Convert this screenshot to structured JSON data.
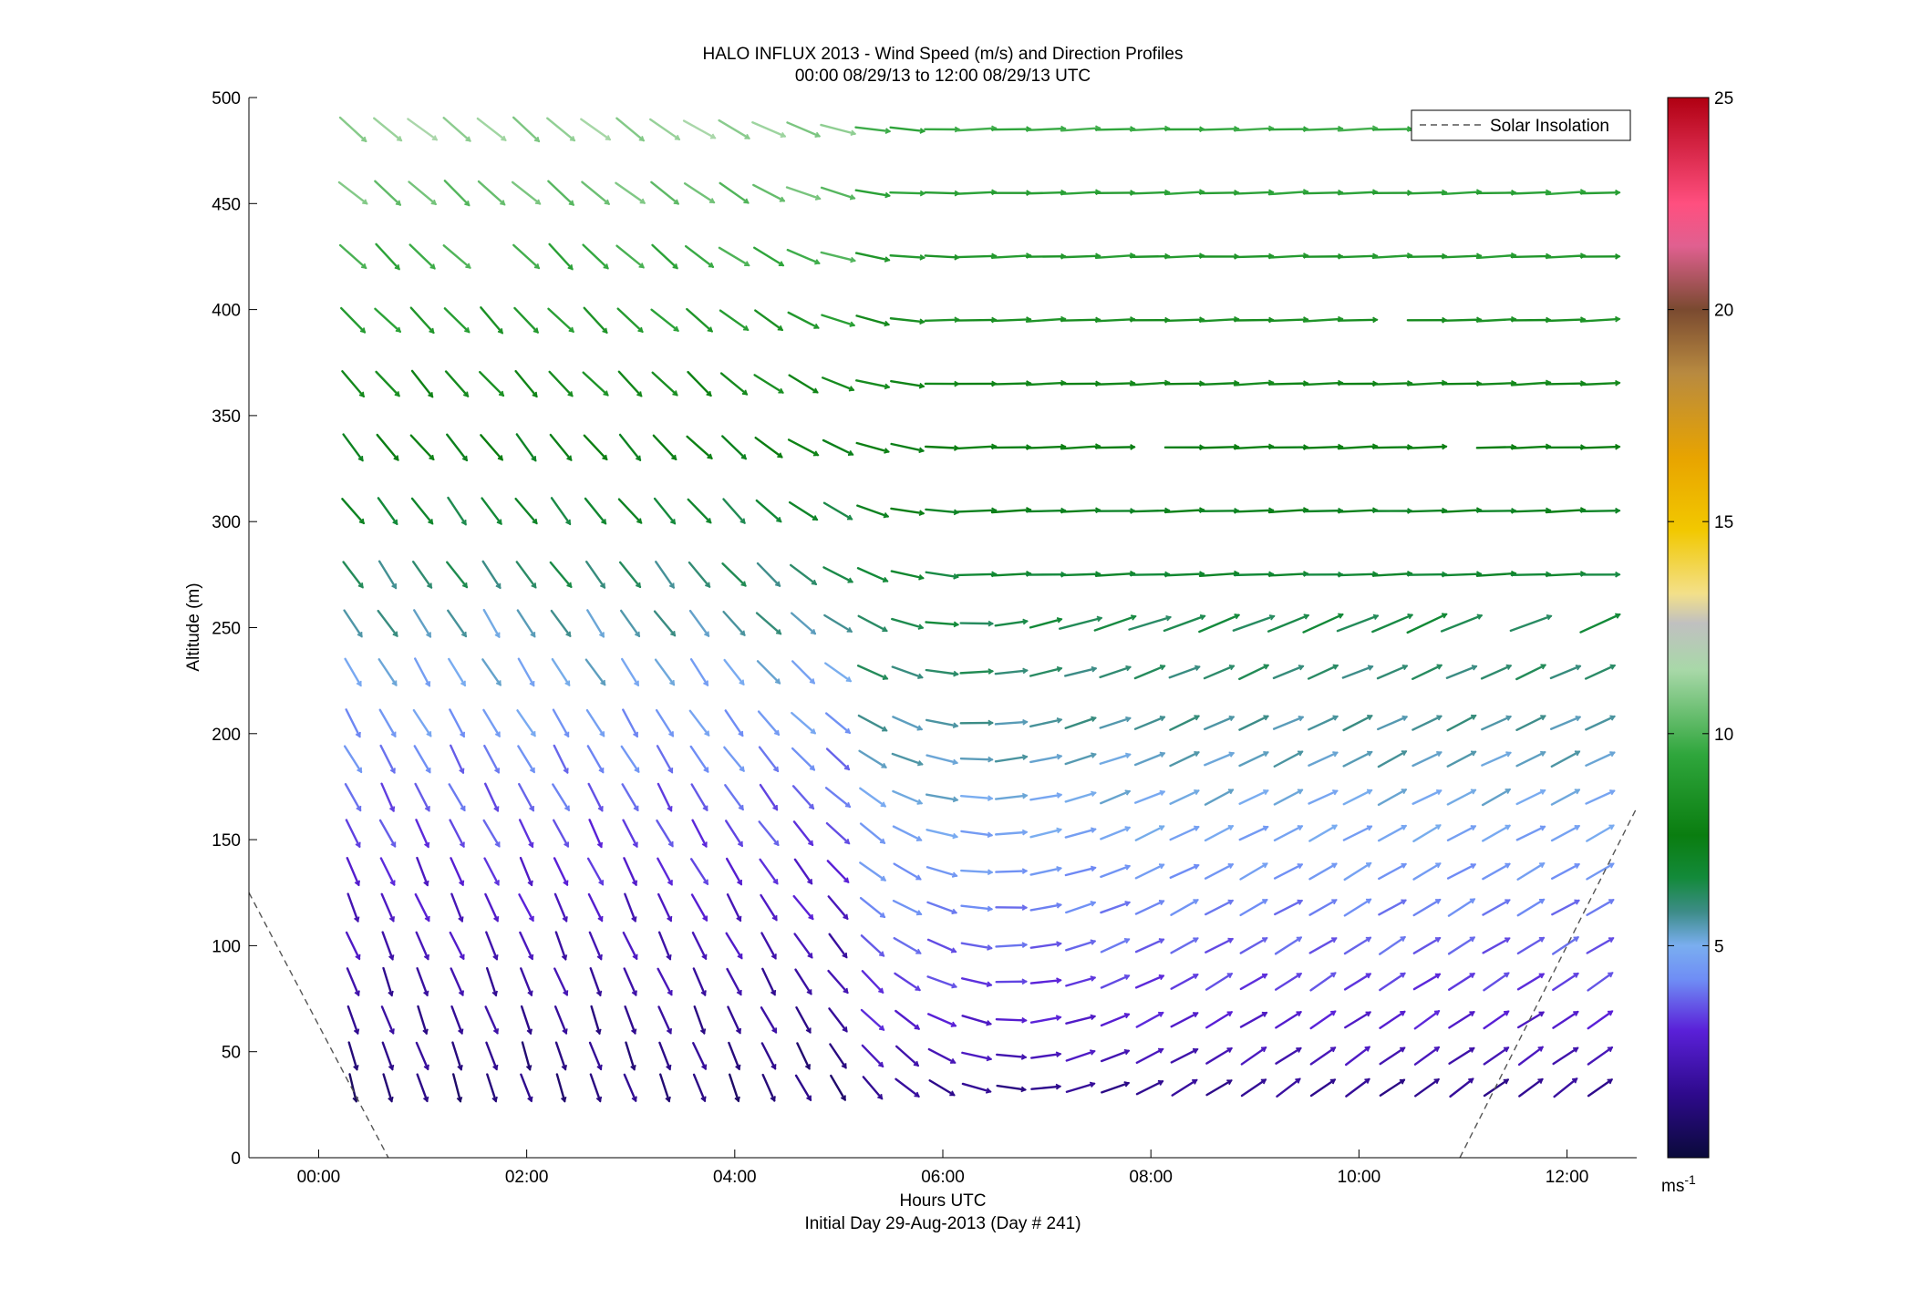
{
  "chart_data": {
    "type": "quiver",
    "title": "HALO INFLUX 2013 - Wind Speed (m/s) and Direction Profiles",
    "subtitle": "00:00 08/29/13 to 12:00 08/29/13  UTC",
    "xlabel": "Hours UTC",
    "xlabel2": "Initial Day 29-Aug-2013 (Day # 241)",
    "ylabel": "Altitude (m)",
    "xlim_hours": [
      -0.67,
      12.67
    ],
    "ylim": [
      0,
      500
    ],
    "x_ticks": [
      {
        "value": 0,
        "label": "00:00"
      },
      {
        "value": 2,
        "label": "02:00"
      },
      {
        "value": 4,
        "label": "04:00"
      },
      {
        "value": 6,
        "label": "06:00"
      },
      {
        "value": 8,
        "label": "08:00"
      },
      {
        "value": 10,
        "label": "10:00"
      },
      {
        "value": 12,
        "label": "12:00"
      }
    ],
    "y_ticks": [
      {
        "value": 0,
        "label": "0"
      },
      {
        "value": 50,
        "label": "50"
      },
      {
        "value": 100,
        "label": "100"
      },
      {
        "value": 150,
        "label": "150"
      },
      {
        "value": 200,
        "label": "200"
      },
      {
        "value": 250,
        "label": "250"
      },
      {
        "value": 300,
        "label": "300"
      },
      {
        "value": 350,
        "label": "350"
      },
      {
        "value": 400,
        "label": "400"
      },
      {
        "value": 450,
        "label": "450"
      },
      {
        "value": 500,
        "label": "500"
      }
    ],
    "altitudes_m": [
      33,
      48,
      65,
      83,
      100,
      118,
      135,
      153,
      170,
      188,
      205,
      229,
      252,
      275,
      305,
      335,
      365,
      395,
      425,
      455,
      485
    ],
    "time_start_hours": 0.33,
    "time_step_hours": 0.333,
    "time_count": 37,
    "legend": {
      "label": "Solar Insolation",
      "position": "top-right"
    },
    "solar_insolation": [
      {
        "segment": [
          [
            -0.67,
            125
          ],
          [
            0.67,
            0
          ]
        ]
      },
      {
        "segment": [
          [
            10.97,
            0
          ],
          [
            12.67,
            165
          ]
        ]
      }
    ],
    "colorbar": {
      "range": [
        0,
        25
      ],
      "ticks": [
        {
          "value": 5,
          "label": "5"
        },
        {
          "value": 10,
          "label": "10"
        },
        {
          "value": 15,
          "label": "15"
        },
        {
          "value": 20,
          "label": "20"
        },
        {
          "value": 25,
          "label": "25"
        }
      ],
      "unit_label": "ms",
      "unit_exponent": "-1",
      "stops": [
        {
          "v": 0,
          "c": "#0a0a3a"
        },
        {
          "v": 1.5,
          "c": "#2e0a8c"
        },
        {
          "v": 3,
          "c": "#5a20d8"
        },
        {
          "v": 4.2,
          "c": "#6f8df5"
        },
        {
          "v": 5,
          "c": "#7aaef0"
        },
        {
          "v": 5.8,
          "c": "#3d8c88"
        },
        {
          "v": 6.6,
          "c": "#138a3a"
        },
        {
          "v": 7.6,
          "c": "#0a7d10"
        },
        {
          "v": 9.5,
          "c": "#2fa63c"
        },
        {
          "v": 11.5,
          "c": "#a8d8a8"
        },
        {
          "v": 12.6,
          "c": "#c0c0c0"
        },
        {
          "v": 13.3,
          "c": "#f3e08a"
        },
        {
          "v": 14.8,
          "c": "#f2c800"
        },
        {
          "v": 16.5,
          "c": "#e8a400"
        },
        {
          "v": 18.5,
          "c": "#b88a40"
        },
        {
          "v": 20,
          "c": "#7a4a30"
        },
        {
          "v": 21.5,
          "c": "#e06090"
        },
        {
          "v": 22.5,
          "c": "#ff4f7f"
        },
        {
          "v": 25,
          "c": "#b00012"
        }
      ]
    }
  }
}
